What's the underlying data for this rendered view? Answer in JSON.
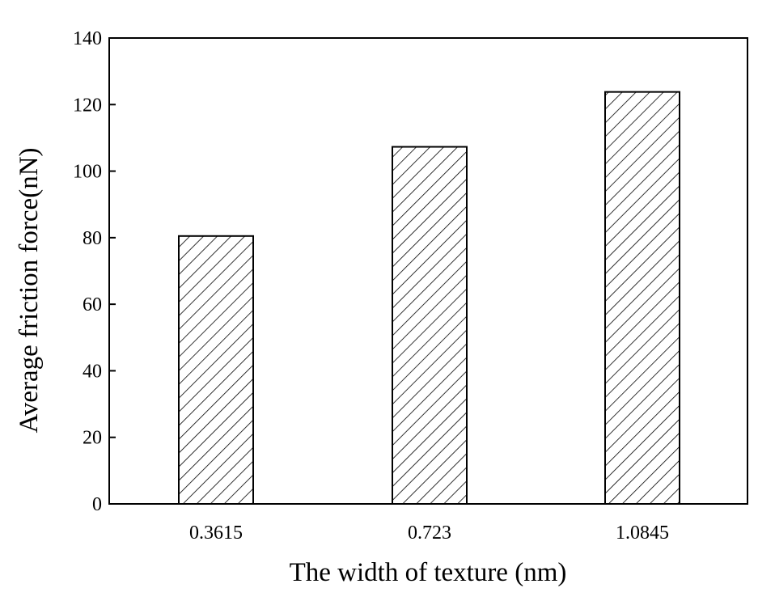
{
  "chart_data": {
    "type": "bar",
    "title": "",
    "xlabel": "The width of texture (nm)",
    "ylabel": "Average friction force(nN)",
    "categories": [
      "0.3615",
      "0.723",
      "1.0845"
    ],
    "values": [
      80.5,
      107.3,
      123.8
    ],
    "ylim": [
      0,
      140
    ],
    "yticks": [
      "0",
      "20",
      "40",
      "60",
      "80",
      "100",
      "120",
      "140"
    ],
    "bar_pattern": "diagonal-hatch",
    "grid": false,
    "legend": "none",
    "colors": {
      "bar_fill": "#ffffff",
      "bar_stroke": "#000000",
      "hatch": "#000000"
    }
  }
}
